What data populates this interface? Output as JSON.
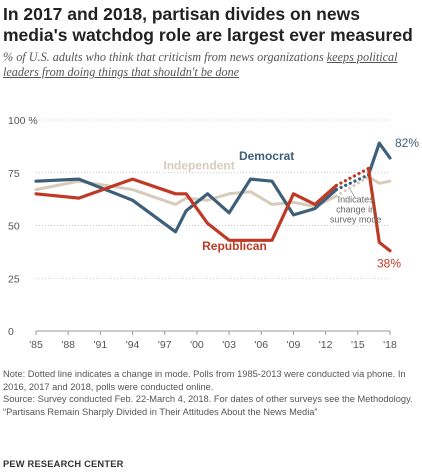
{
  "title": "In 2017 and 2018, partisan divides on news media's watchdog role are largest ever measured",
  "subtitle_before": "% of U.S. adults who think that criticism from news organizations ",
  "subtitle_underlined": "keeps political leaders from doing things that shouldn't be done",
  "notes": {
    "note": "Note: Dotted line indicates a change in mode. Polls from 1985-2013 were conducted via phone. In 2016, 2017 and 2018, polls were conducted online.",
    "source": "Source: Survey conducted Feb. 22-March 4, 2018. For dates of other surveys see the Methodology.",
    "report": "“Partisans Remain Sharply Divided in Their Attitudes About the News Media”"
  },
  "footer": "PEW RESEARCH CENTER",
  "colors": {
    "democrat": "#3d5f7a",
    "republican": "#bf3a24",
    "independent": "#d7ccbb",
    "axis": "#999999",
    "grid": "#bbbbbb"
  },
  "chart_data": {
    "type": "line",
    "title": "",
    "xlabel": "",
    "ylabel": "",
    "xlim": [
      1985,
      2018
    ],
    "ylim": [
      0,
      100
    ],
    "x_tick_labels": [
      "'85",
      "'88",
      "'91",
      "'94",
      "'97",
      "'00",
      "'03",
      "'06",
      "'09",
      "'12",
      "'15",
      "'18"
    ],
    "x_ticks": [
      1985,
      1988,
      1991,
      1994,
      1997,
      2000,
      2003,
      2006,
      2009,
      2012,
      2015,
      2018
    ],
    "y_tick_labels": [
      "0",
      "25",
      "50",
      "75",
      "100 %"
    ],
    "y_ticks": [
      0,
      25,
      50,
      75,
      100
    ],
    "grid": "y-dotted",
    "mode_change_note": "Indicates change in survey mode",
    "series": [
      {
        "name": "Democrat",
        "color_key": "democrat",
        "x": [
          1985,
          1989,
          1994,
          1998,
          1999,
          2001,
          2003,
          2005,
          2007,
          2009,
          2011,
          2013,
          2016,
          2017,
          2018
        ],
        "values": [
          71,
          72,
          62,
          47,
          57,
          65,
          56,
          72,
          71,
          55,
          58,
          67,
          74,
          89,
          82
        ],
        "end_label": "82%"
      },
      {
        "name": "Republican",
        "color_key": "republican",
        "x": [
          1985,
          1989,
          1994,
          1998,
          1999,
          2001,
          2003,
          2005,
          2007,
          2009,
          2011,
          2013,
          2016,
          2017,
          2018
        ],
        "values": [
          65,
          63,
          72,
          65,
          65,
          51,
          43,
          43,
          43,
          65,
          60,
          69,
          77,
          42,
          38
        ],
        "end_label": "38%"
      },
      {
        "name": "Independent",
        "color_key": "independent",
        "x": [
          1985,
          1989,
          1994,
          1998,
          1999,
          2001,
          2003,
          2005,
          2007,
          2009,
          2011,
          2013,
          2016,
          2017,
          2018
        ],
        "values": [
          67,
          71,
          67,
          60,
          63,
          62,
          65,
          66,
          60,
          61,
          59,
          64,
          73,
          70,
          71
        ]
      }
    ]
  }
}
